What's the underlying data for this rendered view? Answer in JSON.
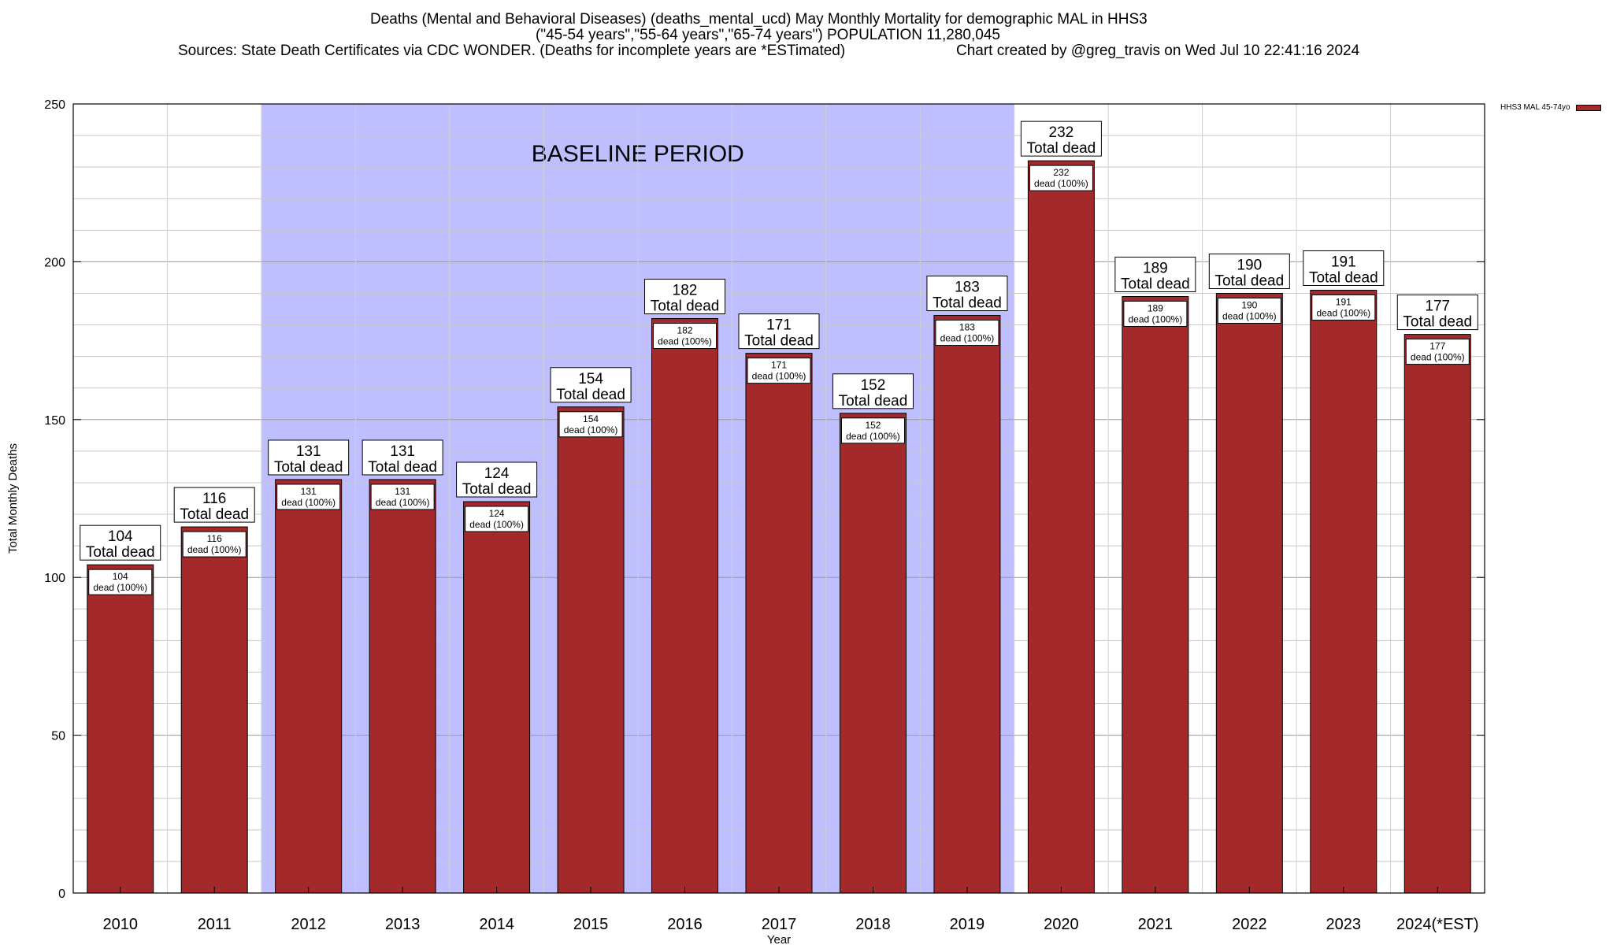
{
  "title": {
    "line1": "Deaths (Mental and Behavioral Diseases) (deaths_mental_ucd) May Monthly Mortality for demographic MAL in HHS3",
    "line2": "(\"45-54 years\",\"55-64 years\",\"65-74 years\") POPULATION 11,280,045",
    "line3_left": "Sources: State Death Certificates via CDC WONDER. (Deaths for incomplete years are *ESTimated)",
    "line3_right": "Chart created by @greg_travis on Wed Jul 10 22:41:16 2024"
  },
  "legend": {
    "label": "HHS3 MAL 45-74yo",
    "color": "#a3292b"
  },
  "chart_data": {
    "type": "bar",
    "xlabel": "Year",
    "ylabel": "Total Monthly Deaths",
    "ylim": [
      0,
      250
    ],
    "yticks": [
      0,
      50,
      100,
      150,
      200,
      250
    ],
    "grid": true,
    "categories": [
      "2010",
      "2011",
      "2012",
      "2013",
      "2014",
      "2015",
      "2016",
      "2017",
      "2018",
      "2019",
      "2020",
      "2021",
      "2022",
      "2023",
      "2024(*EST)"
    ],
    "series": [
      {
        "name": "HHS3 MAL 45-74yo",
        "values": [
          104,
          116,
          131,
          131,
          124,
          154,
          182,
          171,
          152,
          183,
          232,
          189,
          190,
          191,
          177
        ]
      }
    ],
    "bar_color": "#a3292b",
    "top_label_suffix": "Total dead",
    "inner_label_suffix": "dead (100%)",
    "baseline": {
      "label": "BASELINE PERIOD",
      "from": "2012",
      "to": "2019",
      "color": "#bfbfff"
    }
  }
}
